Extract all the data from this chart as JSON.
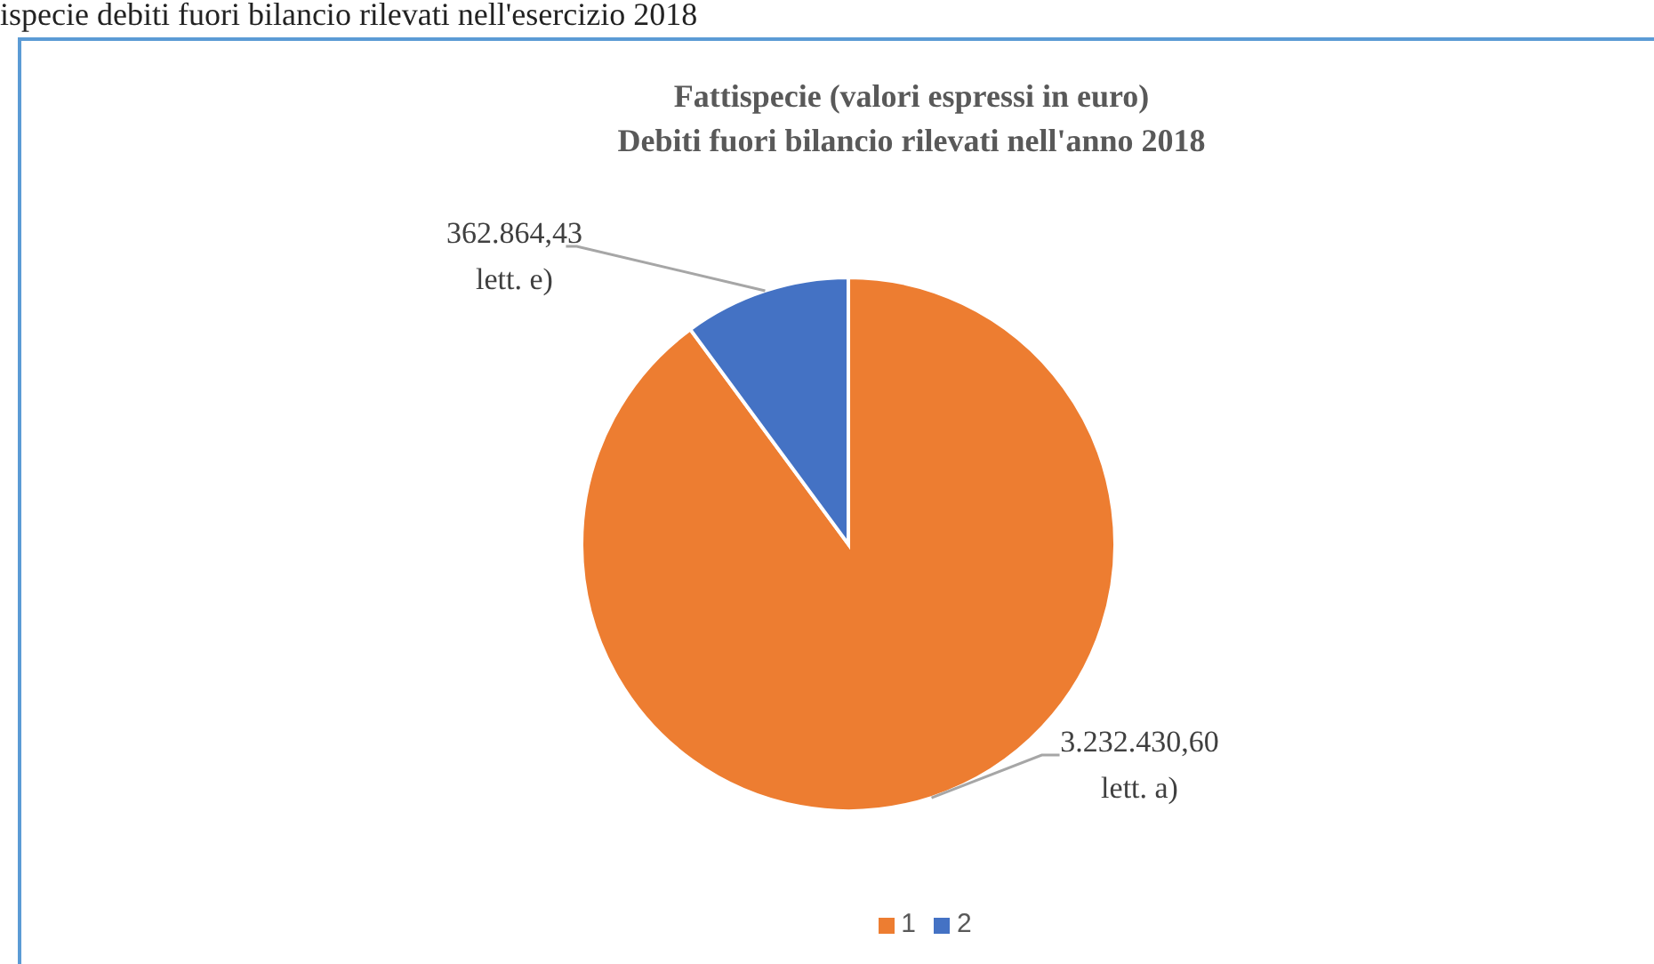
{
  "chart_data": {
    "type": "pie",
    "title": "Fattispecie (valori espressi in euro)",
    "subtitle": "Debiti fuori bilancio rilevati nell'anno 2018",
    "annotations": [
      "ispecie debiti fuori bilancio rilevati nell'esercizio 2018",
      {
        "text": "lett. a)",
        "x": "1"
      },
      {
        "text": "lett. e)",
        "x": "2"
      }
    ],
    "categories": [
      "1",
      "2"
    ],
    "values": [
      3232430.6,
      362864.43
    ],
    "colors": [
      "#ed7d31",
      "#4472c4"
    ],
    "value_labels": [
      "3.232.430,60",
      "362.864,43"
    ],
    "legend": "bottom"
  }
}
